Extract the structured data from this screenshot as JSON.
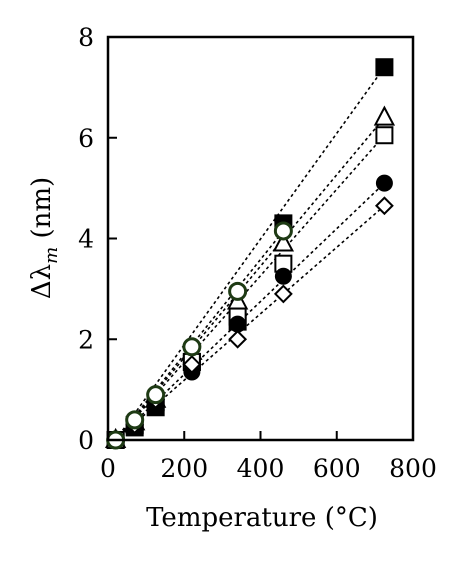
{
  "chart_data": {
    "type": "scatter",
    "xlabel": "Temperature (°C)",
    "ylabel_symbol": "Δλ",
    "ylabel_subscript": "m",
    "ylabel_unit": " (nm)",
    "xlim": [
      0,
      800
    ],
    "ylim": [
      0,
      8
    ],
    "xticks": [
      0,
      200,
      400,
      600,
      800
    ],
    "yticks": [
      0,
      2,
      4,
      6,
      8
    ],
    "grid": false,
    "fit_lines": "dotted",
    "series": [
      {
        "marker": "filled-square",
        "color": "#000000",
        "x": [
          20,
          70,
          125,
          220,
          340,
          460,
          725
        ],
        "y": [
          0.0,
          0.25,
          0.65,
          1.55,
          2.35,
          4.3,
          7.4
        ]
      },
      {
        "marker": "open-triangle",
        "color": "#000000",
        "x": [
          20,
          70,
          125,
          220,
          340,
          460,
          725
        ],
        "y": [
          0.0,
          0.35,
          0.8,
          1.75,
          2.75,
          3.9,
          6.4
        ]
      },
      {
        "marker": "open-square",
        "color": "#000000",
        "x": [
          20,
          70,
          125,
          220,
          340,
          460,
          725
        ],
        "y": [
          0.0,
          0.3,
          0.75,
          1.55,
          2.45,
          3.5,
          6.05
        ]
      },
      {
        "marker": "filled-circle",
        "color": "#000000",
        "x": [
          20,
          70,
          125,
          220,
          340,
          460,
          725
        ],
        "y": [
          0.0,
          0.25,
          0.7,
          1.35,
          2.3,
          3.25,
          5.1
        ]
      },
      {
        "marker": "open-diamond",
        "color": "#000000",
        "x": [
          20,
          70,
          125,
          220,
          340,
          460,
          725
        ],
        "y": [
          0.0,
          0.3,
          0.8,
          1.5,
          2.0,
          2.9,
          4.65
        ]
      },
      {
        "marker": "green-open-circle",
        "color": "#1e3a14",
        "x": [
          20,
          70,
          125,
          220,
          340,
          460
        ],
        "y": [
          0.0,
          0.4,
          0.9,
          1.85,
          2.95,
          4.15
        ]
      }
    ]
  }
}
